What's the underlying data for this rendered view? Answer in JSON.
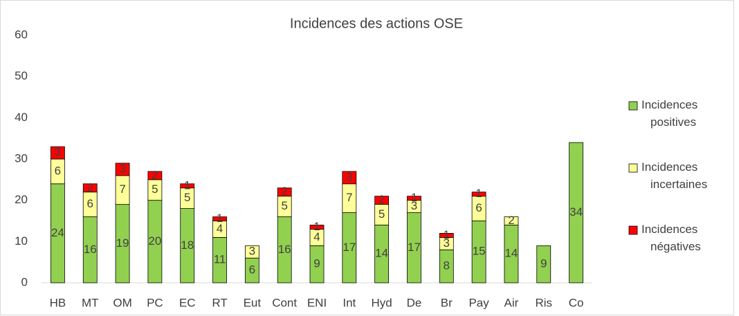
{
  "chart_data": {
    "type": "stacked_bar",
    "title": "Incidences des actions OSE",
    "categories": [
      "HB",
      "MT",
      "OM",
      "PC",
      "EC",
      "RT",
      "Eut",
      "Cont",
      "ENI",
      "Int",
      "Hyd",
      "De",
      "Br",
      "Pay",
      "Air",
      "Ris",
      "Co"
    ],
    "series": [
      {
        "name": "Incidences positives",
        "color": "#92d050",
        "values": [
          24,
          16,
          19,
          20,
          18,
          11,
          6,
          16,
          9,
          17,
          14,
          17,
          8,
          15,
          14,
          9,
          34
        ]
      },
      {
        "name": "Incidences incertaines",
        "color": "#ffff99",
        "values": [
          6,
          6,
          7,
          5,
          5,
          4,
          3,
          5,
          4,
          7,
          5,
          3,
          3,
          6,
          2,
          null,
          null
        ]
      },
      {
        "name": "Incidences négatives",
        "color": "#ff0000",
        "values": [
          3,
          2,
          3,
          2,
          1,
          1,
          null,
          2,
          1,
          3,
          2,
          1,
          1,
          1,
          null,
          null,
          null
        ]
      }
    ],
    "ylim": [
      0,
      60
    ],
    "yticks": [
      0,
      10,
      20,
      30,
      40,
      50,
      60
    ],
    "grid": false,
    "legend": "right"
  }
}
